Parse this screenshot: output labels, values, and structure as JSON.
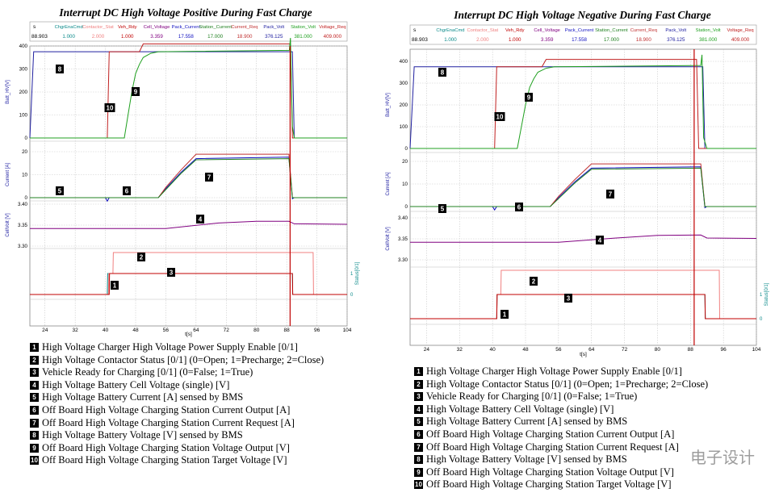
{
  "panels": [
    {
      "title": "Interrupt DC High Voltage Positive During Fast Charge"
    },
    {
      "title": "Interrupt DC High Voltage Negative During Fast Charge"
    }
  ],
  "header": {
    "cols": [
      "ChgrEnaCmd",
      "Contactor_Stat",
      "Veh_Rdy",
      "Cell_Voltage",
      "Pack_Current",
      "Station_Current",
      "Current_Req",
      "Pack_Volt",
      "Station_Volt",
      "Voltage_Req"
    ],
    "vals": [
      "1.000",
      "2.000",
      "1.000",
      "3.359",
      "17.558",
      "17.000",
      "18.900",
      "376.125",
      "381.000",
      "409.000"
    ],
    "colors": [
      "#0a8a8a",
      "#f08080",
      "#c00000",
      "#800080",
      "#1010c0",
      "#208020",
      "#c03030",
      "#2020a0",
      "#20a020",
      "#c02020"
    ],
    "time_value": "88.903",
    "time_unit": "s"
  },
  "axes": {
    "xlabel": "t[s]",
    "xticks": [
      "24",
      "32",
      "40",
      "48",
      "56",
      "64",
      "72",
      "80",
      "88",
      "96",
      "104"
    ],
    "volt_ylabel": "Batt_HV[V]",
    "volt_ticks": [
      "400",
      "300",
      "200",
      "100",
      "0"
    ],
    "curr_ylabel": "Current [A]",
    "curr_ticks": [
      "20",
      "10",
      "0"
    ],
    "cell_ylabel": "CellVolt [V]",
    "cell_ticks": [
      "3.40",
      "3.35",
      "3.30"
    ],
    "status_ylabel": "Status[0/1]",
    "status_ticks": [
      "1",
      "0"
    ]
  },
  "markers": [
    "1",
    "2",
    "3",
    "4",
    "5",
    "6",
    "7",
    "8",
    "9",
    "10"
  ],
  "legend": [
    {
      "num": "1",
      "text": "High Voltage Charger High Voltage Power Supply Enable [0/1]"
    },
    {
      "num": "2",
      "text": "High Voltage Contactor Status [0/1] (0=Open; 1=Precharge; 2=Close)"
    },
    {
      "num": "3",
      "text": "Vehicle Ready for Charging [0/1] (0=False; 1=True)"
    },
    {
      "num": "4",
      "text": "High Voltage Battery Cell Voltage (single) [V]"
    },
    {
      "num": "5",
      "text": "High Voltage Battery Current [A] sensed by BMS"
    },
    {
      "num": "6",
      "text": "Off Board High Voltage Charging Station Current Output [A]"
    },
    {
      "num": "7",
      "text": "Off Board High Voltage Charging Station Current Request [A]"
    },
    {
      "num": "8",
      "text": "High Voltage Battery Voltage [V] sensed by BMS"
    },
    {
      "num": "9",
      "text": "Off Board High Voltage Charging Station Voltage Output [V]"
    },
    {
      "num": "10",
      "text": "Off Board High Voltage Charging Station Target Voltage [V]"
    }
  ],
  "watermark": "电子设计",
  "chart_data": [
    {
      "type": "line",
      "title": "Interrupt DC High Voltage Positive During Fast Charge",
      "xlabel": "t[s]",
      "xlim": [
        20,
        104
      ],
      "cursor_t": 88.903,
      "grid": true,
      "series": [
        {
          "name": "Pack_Volt",
          "unit": "V",
          "points": [
            [
              20,
              0
            ],
            [
              21,
              375
            ],
            [
              89.5,
              375
            ],
            [
              90,
              0
            ],
            [
              104,
              0
            ]
          ]
        },
        {
          "name": "Voltage_Req",
          "unit": "V",
          "points": [
            [
              20,
              0
            ],
            [
              40.5,
              0
            ],
            [
              41,
              375
            ],
            [
              49,
              375
            ],
            [
              50,
              409
            ],
            [
              89,
              409
            ],
            [
              89.5,
              0
            ],
            [
              104,
              0
            ]
          ]
        },
        {
          "name": "Station_Volt",
          "unit": "V",
          "points": [
            [
              20,
              0
            ],
            [
              45,
              0
            ],
            [
              46,
              100
            ],
            [
              47,
              200
            ],
            [
              48,
              280
            ],
            [
              49,
              320
            ],
            [
              50,
              350
            ],
            [
              52,
              368
            ],
            [
              54,
              375
            ],
            [
              88.7,
              381
            ],
            [
              89,
              435
            ],
            [
              89.5,
              50
            ],
            [
              90,
              0
            ],
            [
              104,
              0
            ]
          ]
        },
        {
          "name": "Pack_Current",
          "unit": "A",
          "points": [
            [
              20,
              0
            ],
            [
              40,
              0
            ],
            [
              40.5,
              -1.5
            ],
            [
              41,
              0
            ],
            [
              54,
              0
            ],
            [
              56,
              4
            ],
            [
              60,
              11
            ],
            [
              64,
              17
            ],
            [
              88.6,
              17.6
            ],
            [
              89.5,
              -0.5
            ],
            [
              90,
              0
            ],
            [
              104,
              0
            ]
          ]
        },
        {
          "name": "Current_Req",
          "unit": "A",
          "points": [
            [
              20,
              0
            ],
            [
              54,
              0
            ],
            [
              56,
              4.5
            ],
            [
              60,
              12
            ],
            [
              64,
              18.9
            ],
            [
              88.6,
              18.9
            ],
            [
              89.5,
              0
            ],
            [
              104,
              0
            ]
          ]
        },
        {
          "name": "Station_Current",
          "unit": "A",
          "points": [
            [
              20,
              0
            ],
            [
              54,
              0
            ],
            [
              56,
              3.5
            ],
            [
              60,
              10.5
            ],
            [
              64,
              16.5
            ],
            [
              88.6,
              17
            ],
            [
              89.5,
              0
            ],
            [
              104,
              0
            ]
          ]
        },
        {
          "name": "Cell_Voltage",
          "unit": "V",
          "points": [
            [
              20,
              3.342
            ],
            [
              56,
              3.342
            ],
            [
              70,
              3.355
            ],
            [
              80,
              3.359
            ],
            [
              88.6,
              3.359
            ],
            [
              90,
              3.353
            ],
            [
              104,
              3.352
            ]
          ]
        },
        {
          "name": "ChgrEnaCmd",
          "unit": "0/1",
          "points": [
            [
              20,
              0
            ],
            [
              40.5,
              0
            ],
            [
              40.6,
              1
            ],
            [
              89.5,
              1
            ],
            [
              89.6,
              0
            ],
            [
              104,
              0
            ]
          ]
        },
        {
          "name": "Contactor_Stat",
          "unit": "0/1/2",
          "points": [
            [
              20,
              0
            ],
            [
              40.8,
              0
            ],
            [
              40.9,
              1
            ],
            [
              42,
              1
            ],
            [
              42.1,
              2
            ],
            [
              95,
              2
            ],
            [
              95.1,
              0
            ],
            [
              104,
              0
            ]
          ]
        },
        {
          "name": "Veh_Rdy",
          "unit": "0/1",
          "points": [
            [
              20,
              0
            ],
            [
              41,
              0
            ],
            [
              41.1,
              1
            ],
            [
              89.5,
              1
            ],
            [
              89.6,
              0
            ],
            [
              104,
              0
            ]
          ]
        }
      ]
    },
    {
      "type": "line",
      "title": "Interrupt DC High Voltage Negative During Fast Charge",
      "xlabel": "t[s]",
      "xlim": [
        20,
        104
      ],
      "cursor_t": 88.903,
      "grid": true,
      "series": [
        {
          "name": "Pack_Volt",
          "unit": "V",
          "points": [
            [
              20,
              0
            ],
            [
              21,
              375
            ],
            [
              91,
              375
            ],
            [
              91.5,
              0
            ],
            [
              104,
              0
            ]
          ]
        },
        {
          "name": "Voltage_Req",
          "unit": "V",
          "points": [
            [
              20,
              0
            ],
            [
              40.5,
              0
            ],
            [
              41,
              375
            ],
            [
              52,
              375
            ],
            [
              53,
              409
            ],
            [
              89.5,
              409
            ],
            [
              90,
              0
            ],
            [
              104,
              0
            ]
          ]
        },
        {
          "name": "Station_Volt",
          "unit": "V",
          "points": [
            [
              20,
              0
            ],
            [
              46,
              0
            ],
            [
              47,
              100
            ],
            [
              48,
              200
            ],
            [
              49,
              280
            ],
            [
              50,
              320
            ],
            [
              51,
              350
            ],
            [
              53,
              368
            ],
            [
              55,
              375
            ],
            [
              90.5,
              381
            ],
            [
              90.8,
              430
            ],
            [
              91.2,
              50
            ],
            [
              92,
              0
            ],
            [
              104,
              0
            ]
          ]
        },
        {
          "name": "Pack_Current",
          "unit": "A",
          "points": [
            [
              20,
              0
            ],
            [
              40,
              0
            ],
            [
              40.5,
              -1.5
            ],
            [
              41,
              0
            ],
            [
              54,
              0
            ],
            [
              56,
              4
            ],
            [
              60,
              11
            ],
            [
              64,
              17
            ],
            [
              90.5,
              17.6
            ],
            [
              91.5,
              -0.5
            ],
            [
              92,
              0
            ],
            [
              104,
              0
            ]
          ]
        },
        {
          "name": "Current_Req",
          "unit": "A",
          "points": [
            [
              20,
              0
            ],
            [
              54,
              0
            ],
            [
              56,
              4.5
            ],
            [
              60,
              12
            ],
            [
              64,
              18.9
            ],
            [
              90.5,
              18.9
            ],
            [
              91.5,
              0
            ],
            [
              104,
              0
            ]
          ]
        },
        {
          "name": "Station_Current",
          "unit": "A",
          "points": [
            [
              20,
              0
            ],
            [
              54,
              0
            ],
            [
              56,
              3.5
            ],
            [
              60,
              10.5
            ],
            [
              64,
              16.5
            ],
            [
              90.5,
              17
            ],
            [
              91.5,
              0
            ],
            [
              104,
              0
            ]
          ]
        },
        {
          "name": "Cell_Voltage",
          "unit": "V",
          "points": [
            [
              20,
              3.342
            ],
            [
              56,
              3.342
            ],
            [
              70,
              3.352
            ],
            [
              80,
              3.358
            ],
            [
              90.5,
              3.359
            ],
            [
              92,
              3.352
            ],
            [
              104,
              3.351
            ]
          ]
        },
        {
          "name": "ChgrEnaCmd",
          "unit": "0/1",
          "points": [
            [
              20,
              0
            ],
            [
              41,
              0
            ],
            [
              41.1,
              1
            ],
            [
              91.5,
              1
            ],
            [
              91.6,
              0
            ],
            [
              104,
              0
            ]
          ]
        },
        {
          "name": "Contactor_Stat",
          "unit": "0/1/2",
          "points": [
            [
              20,
              0
            ],
            [
              41,
              0
            ],
            [
              41.1,
              1
            ],
            [
              42,
              1
            ],
            [
              42.1,
              2
            ],
            [
              95,
              2
            ],
            [
              95.1,
              0
            ],
            [
              104,
              0
            ]
          ]
        },
        {
          "name": "Veh_Rdy",
          "unit": "0/1",
          "points": [
            [
              20,
              0
            ],
            [
              41,
              0
            ],
            [
              41.1,
              1
            ],
            [
              91.5,
              1
            ],
            [
              91.6,
              0
            ],
            [
              104,
              0
            ]
          ]
        }
      ]
    }
  ]
}
